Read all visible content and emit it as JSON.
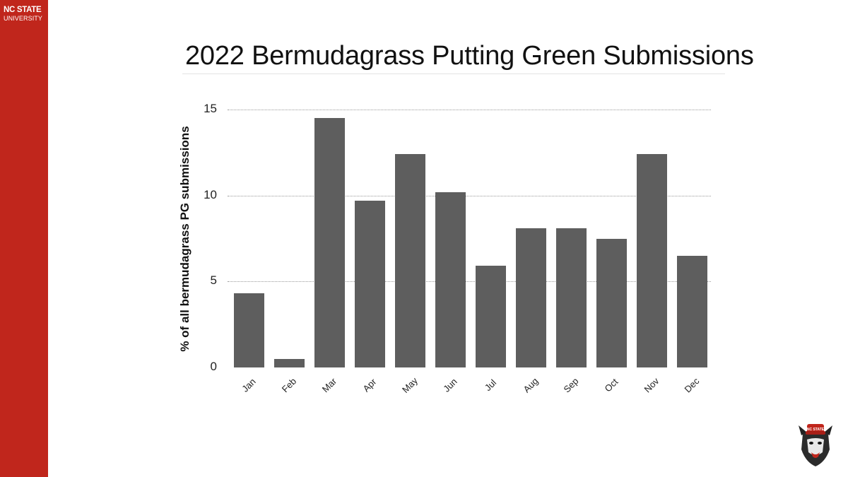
{
  "branding": {
    "line1": "NC STATE",
    "line2": "UNIVERSITY",
    "color": "#c0261c"
  },
  "slide": {
    "title": "2022 Bermudagrass Putting Green Submissions"
  },
  "chart_data": {
    "type": "bar",
    "title": "2022 Bermudagrass Putting Green Submissions",
    "xlabel": "",
    "ylabel": "% of all bermudagrass PG submissions",
    "categories": [
      "Jan",
      "Feb",
      "Mar",
      "Apr",
      "May",
      "Jun",
      "Jul",
      "Aug",
      "Sep",
      "Oct",
      "Nov",
      "Dec"
    ],
    "values": [
      4.3,
      0.5,
      14.5,
      9.7,
      12.4,
      10.2,
      5.9,
      8.1,
      8.1,
      7.5,
      12.4,
      6.5
    ],
    "ylim": [
      0,
      15
    ],
    "yticks": [
      "0",
      "5",
      "10",
      "15"
    ],
    "grid": true,
    "legend": "none",
    "bar_color": "#5e5e5e"
  }
}
